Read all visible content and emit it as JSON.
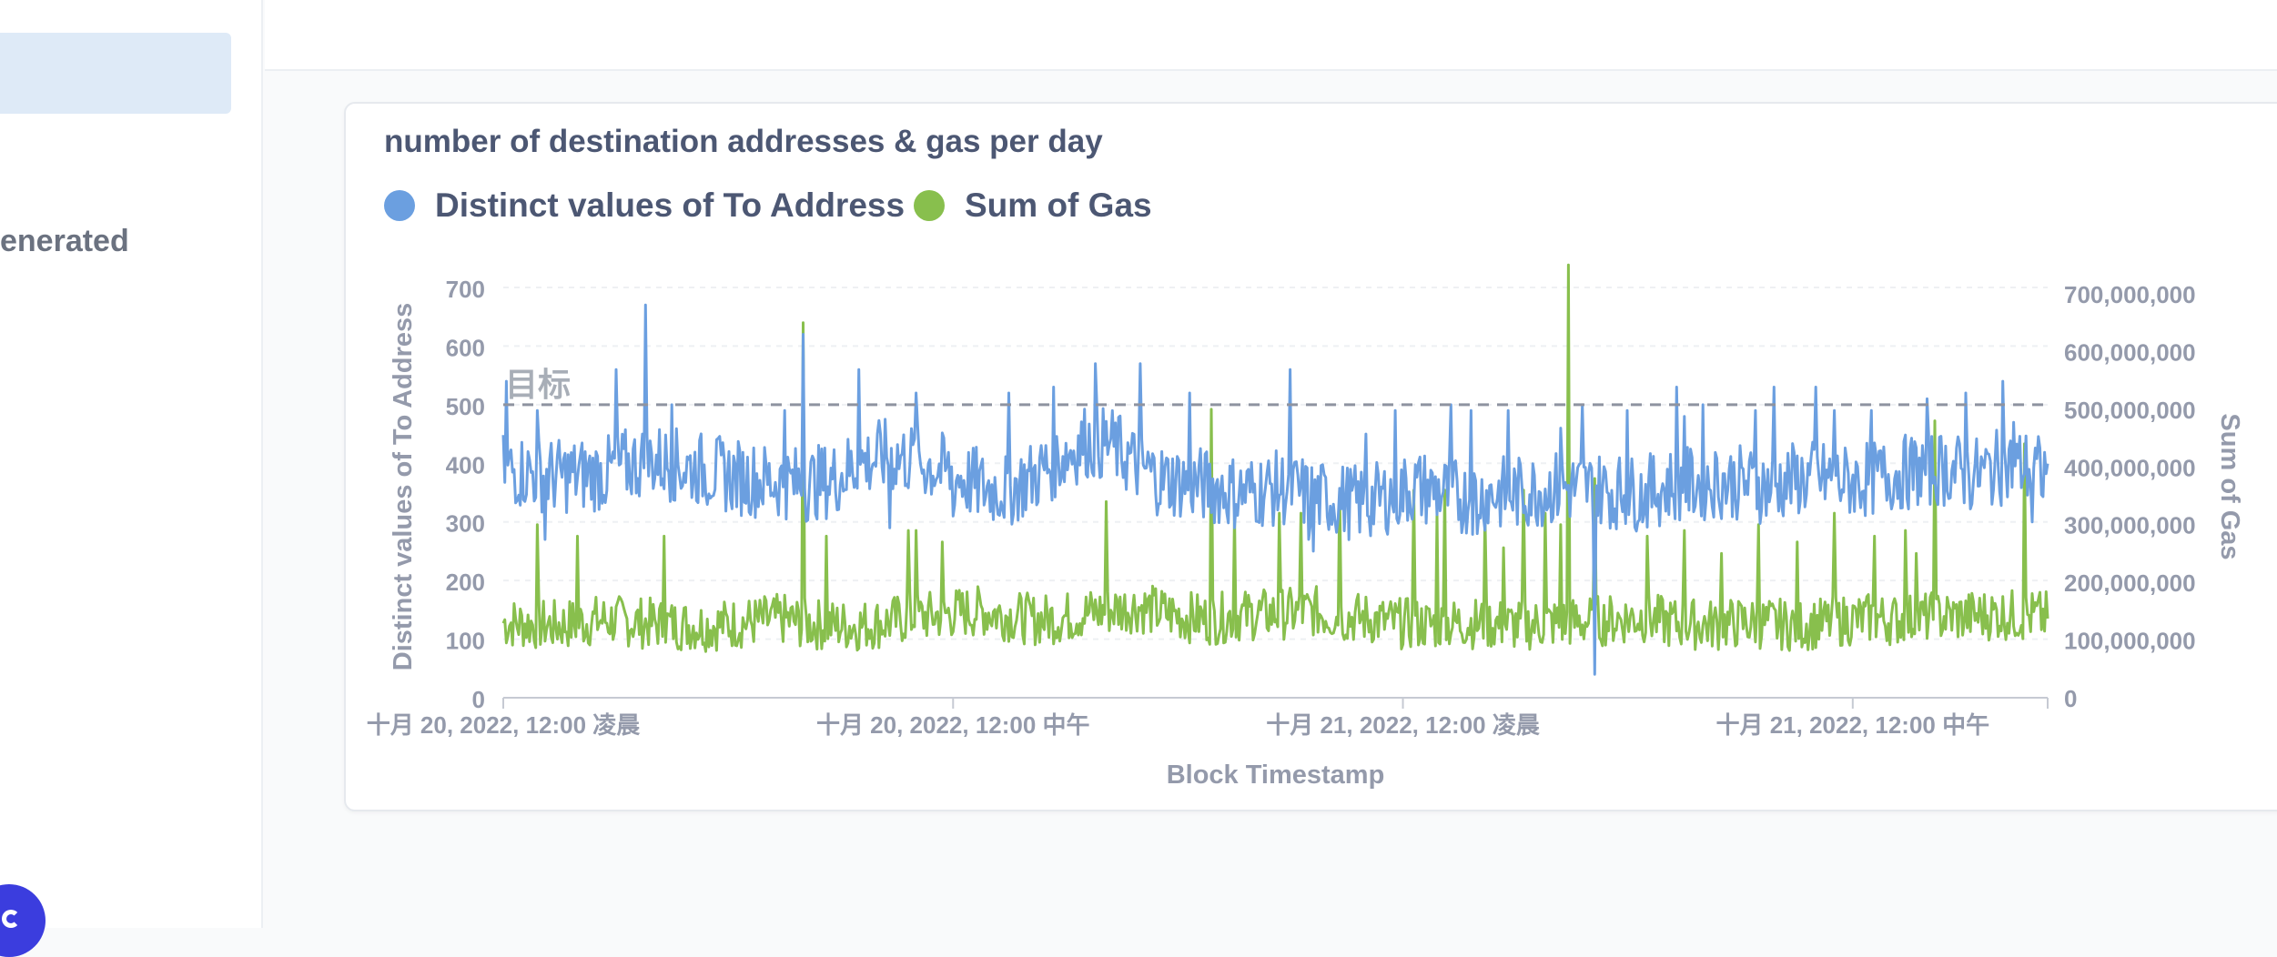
{
  "sidebar": {
    "partial_text": "enerated"
  },
  "chart_data": {
    "type": "line",
    "title": "number of destination addresses & gas per day",
    "xlabel": "Block Timestamp",
    "ylabel_left": "Distinct values of To Address",
    "ylabel_right": "Sum of Gas",
    "ylim_left": [
      0,
      700
    ],
    "ylim_right": [
      0,
      760000000
    ],
    "yticks_left": [
      "0",
      "100",
      "200",
      "300",
      "400",
      "500",
      "600",
      "700"
    ],
    "yticks_right": [
      "0",
      "100,000,000",
      "200,000,000",
      "300,000,000",
      "400,000,000",
      "500,000,000",
      "600,000,000",
      "700,000,000"
    ],
    "xticks": [
      "十月 20, 2022, 12:00 凌晨",
      "十月 20, 2022, 12:00 中午",
      "十月 21, 2022, 12:00 凌晨",
      "十月 21, 2022, 12:00 中午"
    ],
    "x_range_hours": [
      0,
      41.2
    ],
    "goal": {
      "label": "目标",
      "value": 500
    },
    "grid": true,
    "legend_position": "top-left",
    "series": [
      {
        "name": "Distinct values of To Address",
        "axis": "left",
        "color": "#6b9fe0",
        "base": [
          390,
          385,
          378,
          380,
          382,
          398,
          405,
          395,
          388,
          378,
          372,
          368,
          364,
          372,
          398,
          412,
          408,
          394,
          376,
          358,
          356,
          378,
          410,
          438,
          432,
          398,
          372,
          368,
          360,
          350,
          355,
          358,
          342,
          338,
          330,
          345,
          360,
          352,
          340,
          348,
          348,
          356,
          358,
          358,
          352,
          348,
          362,
          365,
          370,
          366,
          360,
          372,
          375,
          368,
          374,
          382,
          388,
          392,
          378,
          392,
          396,
          380
        ],
        "spikes": [
          [
            0.1,
            540
          ],
          [
            0.9,
            490
          ],
          [
            3.0,
            560
          ],
          [
            3.8,
            670
          ],
          [
            4.5,
            500
          ],
          [
            7.5,
            490
          ],
          [
            8.0,
            620
          ],
          [
            9.5,
            560
          ],
          [
            11.0,
            520
          ],
          [
            12.0,
            310
          ],
          [
            13.5,
            520
          ],
          [
            14.7,
            530
          ],
          [
            15.8,
            570
          ],
          [
            17.0,
            570
          ],
          [
            18.3,
            520
          ],
          [
            21.0,
            560
          ],
          [
            21.5,
            270
          ],
          [
            23.0,
            450
          ],
          [
            23.8,
            490
          ],
          [
            25.3,
            500
          ],
          [
            25.8,
            490
          ],
          [
            26.8,
            490
          ],
          [
            28.2,
            460
          ],
          [
            28.8,
            500
          ],
          [
            30.0,
            490
          ],
          [
            31.3,
            530
          ],
          [
            31.5,
            480
          ],
          [
            32.0,
            500
          ],
          [
            33.4,
            490
          ],
          [
            33.9,
            530
          ],
          [
            35.0,
            530
          ],
          [
            35.5,
            490
          ],
          [
            36.5,
            490
          ],
          [
            38.0,
            510
          ],
          [
            39.0,
            520
          ],
          [
            40.0,
            540
          ],
          [
            40.3,
            470
          ]
        ],
        "dips": [
          [
            1.1,
            270
          ],
          [
            10.3,
            290
          ],
          [
            21.6,
            250
          ],
          [
            26.0,
            280
          ],
          [
            29.1,
            40
          ],
          [
            29.6,
            300
          ],
          [
            40.8,
            300
          ]
        ]
      },
      {
        "name": "Sum of Gas",
        "axis": "right",
        "color": "#88bf4d",
        "base": [
          130000000,
          128000000,
          125000000,
          130000000,
          135000000,
          132000000,
          128000000,
          126000000,
          125000000,
          128000000,
          132000000,
          136000000,
          128000000,
          126000000,
          125000000,
          130000000,
          138000000,
          142000000,
          148000000,
          150000000,
          142000000,
          135000000,
          138000000,
          146000000,
          152000000,
          158000000,
          148000000,
          140000000,
          136000000,
          142000000,
          145000000,
          146000000,
          150000000,
          140000000,
          138000000,
          130000000,
          128000000,
          126000000,
          130000000,
          128000000,
          125000000,
          128000000,
          130000000,
          132000000,
          136000000,
          140000000,
          130000000,
          128000000,
          126000000,
          130000000,
          128000000,
          126000000,
          128000000,
          134000000,
          138000000,
          135000000,
          138000000,
          140000000,
          142000000,
          145000000,
          142000000,
          140000000
        ],
        "spikes": [
          [
            0.9,
            300000000
          ],
          [
            2.0,
            280000000
          ],
          [
            4.3,
            280000000
          ],
          [
            8.0,
            650000000
          ],
          [
            8.6,
            280000000
          ],
          [
            10.8,
            290000000
          ],
          [
            11.0,
            290000000
          ],
          [
            11.7,
            270000000
          ],
          [
            16.1,
            340000000
          ],
          [
            18.9,
            500000000
          ],
          [
            19.5,
            320000000
          ],
          [
            20.7,
            320000000
          ],
          [
            21.3,
            320000000
          ],
          [
            22.3,
            360000000
          ],
          [
            24.3,
            360000000
          ],
          [
            24.9,
            320000000
          ],
          [
            25.1,
            360000000
          ],
          [
            26.2,
            320000000
          ],
          [
            26.7,
            260000000
          ],
          [
            27.2,
            360000000
          ],
          [
            27.8,
            320000000
          ],
          [
            28.2,
            300000000
          ],
          [
            28.4,
            750000000
          ],
          [
            29.1,
            380000000
          ],
          [
            30.5,
            280000000
          ],
          [
            31.5,
            290000000
          ],
          [
            32.5,
            250000000
          ],
          [
            33.5,
            300000000
          ],
          [
            34.5,
            270000000
          ],
          [
            35.5,
            320000000
          ],
          [
            36.6,
            280000000
          ],
          [
            37.4,
            290000000
          ],
          [
            37.7,
            250000000
          ],
          [
            38.2,
            480000000
          ],
          [
            40.6,
            440000000
          ]
        ]
      }
    ]
  }
}
